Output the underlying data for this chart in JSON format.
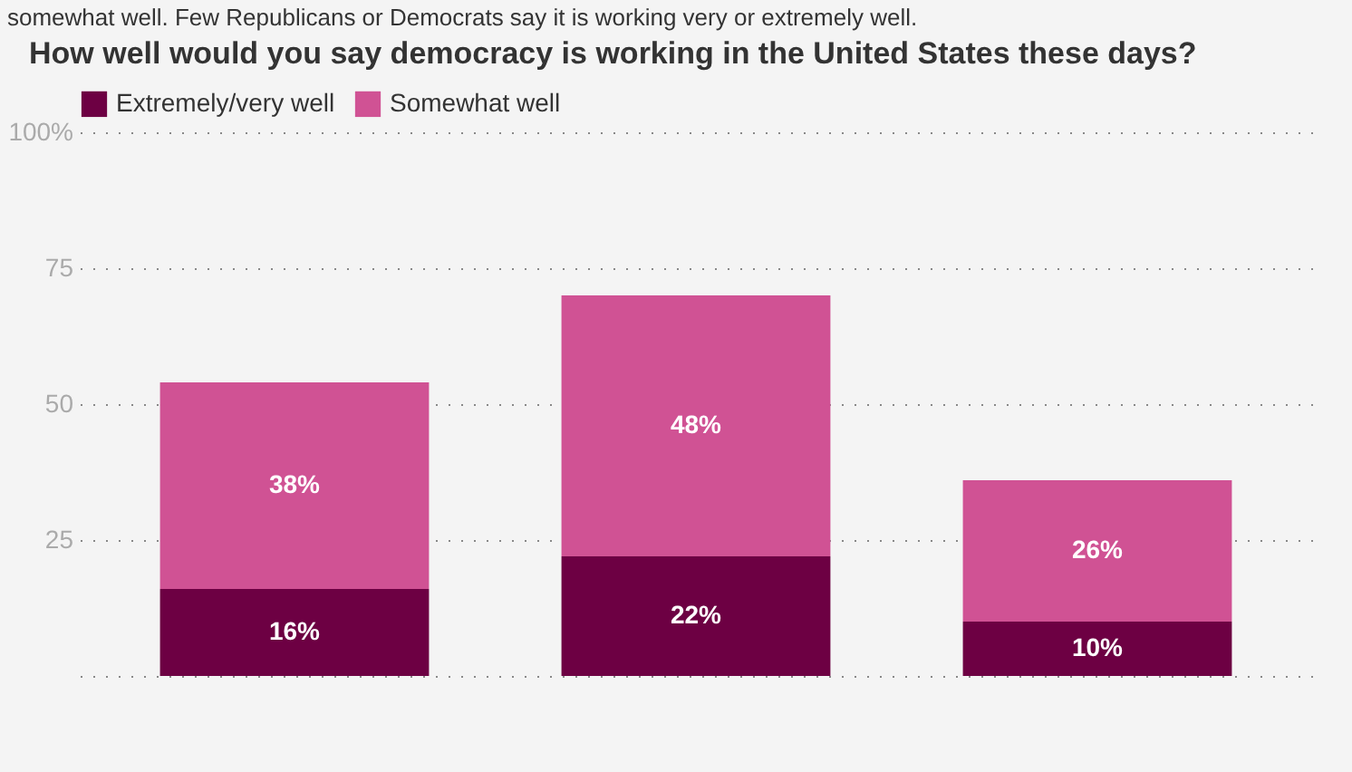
{
  "chart_data": {
    "type": "bar",
    "title": "How well would you say democracy is working in the United States these days?",
    "annotations": [
      "somewhat well. Few Republicans or Democrats say it is working very or extremely well."
    ],
    "categories": [
      null,
      null,
      null
    ],
    "stacked": true,
    "series": [
      {
        "name": "Extremely/very well",
        "color": "#6d0043",
        "values": [
          16,
          22,
          10
        ],
        "value_labels": [
          "16%",
          "22%",
          "10%"
        ]
      },
      {
        "name": "Somewhat well",
        "color": "#d05294",
        "values": [
          38,
          48,
          26
        ],
        "value_labels": [
          "38%",
          "48%",
          "26%"
        ]
      }
    ],
    "ylim": [
      0,
      100
    ],
    "yticks": [
      {
        "value": 0,
        "label": null
      },
      25,
      50,
      75,
      {
        "value": 100,
        "label": "100%"
      }
    ],
    "grid": "y",
    "legend": "top left",
    "tick_labels": "y"
  }
}
